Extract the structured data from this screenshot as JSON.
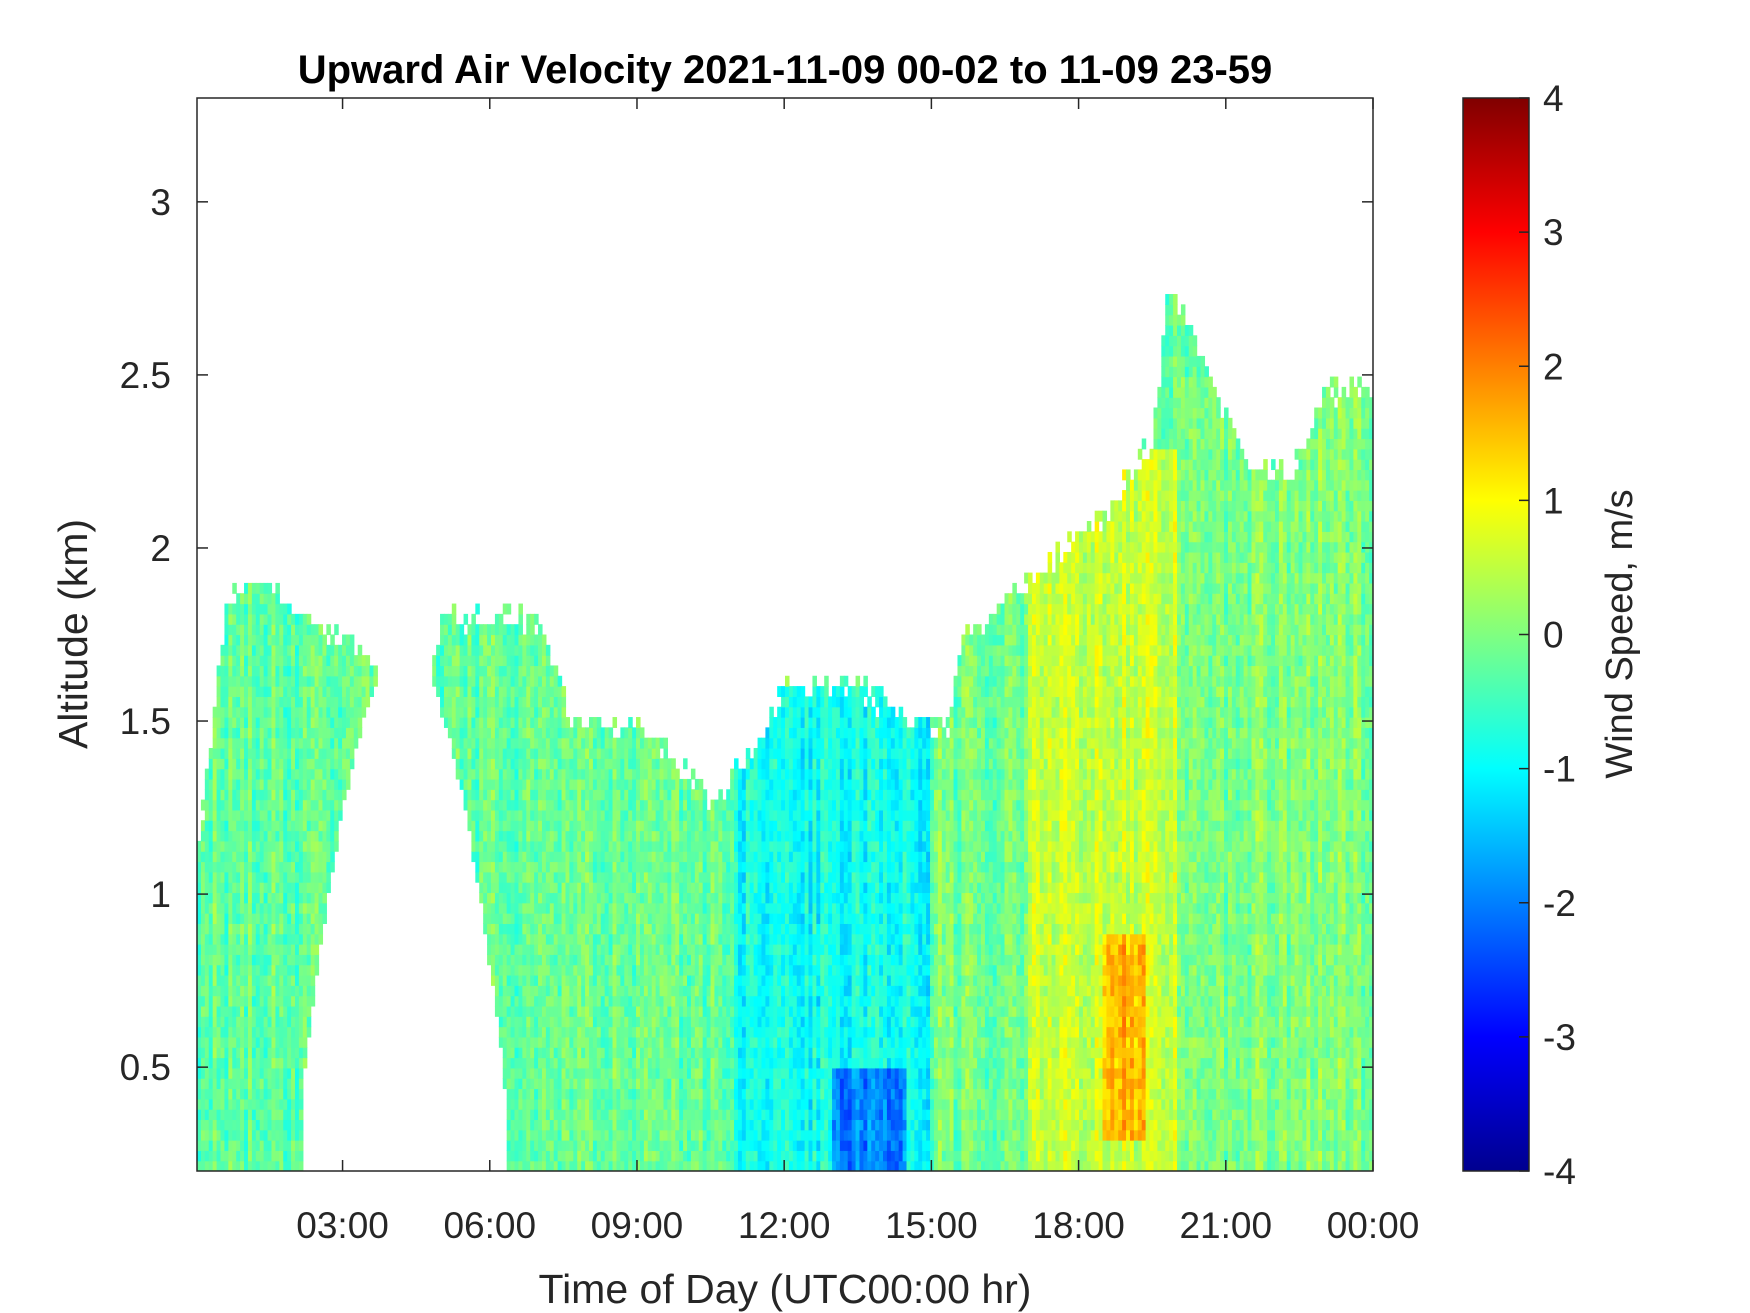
{
  "chart_data": {
    "type": "heatmap",
    "title": "Upward Air Velocity 2021-11-09 00-02 to 11-09 23-59",
    "xlabel": "Time of Day (UTC00:00 hr)",
    "ylabel": "Altitude (km)",
    "xlim": [
      "00:02",
      "24:00"
    ],
    "ylim": [
      0.2,
      3.3
    ],
    "x_ticks": [
      "03:00",
      "06:00",
      "09:00",
      "12:00",
      "15:00",
      "18:00",
      "21:00",
      "00:00"
    ],
    "y_ticks": [
      "0.5",
      "1",
      "1.5",
      "2",
      "2.5",
      "3"
    ],
    "colorbar": {
      "label": "Wind Speed, m/s",
      "colormap": "jet",
      "clim": [
        -4,
        4
      ],
      "ticks": [
        "-4",
        "-3",
        "-2",
        "-1",
        "0",
        "1",
        "2",
        "3",
        "4"
      ]
    },
    "data_top_altitude_km": [
      {
        "time": "00:02",
        "top_km": 1.1
      },
      {
        "time": "00:40",
        "top_km": 1.87
      },
      {
        "time": "01:40",
        "top_km": 1.87
      },
      {
        "time": "02:10",
        "top_km": 1.8
      },
      {
        "time": "03:30",
        "top_km": 1.7
      },
      {
        "time": "04:30",
        "top_km": 1.3
      },
      {
        "time": "05:00",
        "top_km": 1.8
      },
      {
        "time": "07:00",
        "top_km": 1.8
      },
      {
        "time": "07:40",
        "top_km": 1.5
      },
      {
        "time": "09:00",
        "top_km": 1.5
      },
      {
        "time": "10:00",
        "top_km": 1.35
      },
      {
        "time": "10:30",
        "top_km": 1.25
      },
      {
        "time": "11:30",
        "top_km": 1.45
      },
      {
        "time": "12:00",
        "top_km": 1.6
      },
      {
        "time": "13:30",
        "top_km": 1.6
      },
      {
        "time": "14:30",
        "top_km": 1.5
      },
      {
        "time": "15:20",
        "top_km": 1.5
      },
      {
        "time": "15:40",
        "top_km": 1.75
      },
      {
        "time": "17:00",
        "top_km": 1.9
      },
      {
        "time": "18:30",
        "top_km": 2.1
      },
      {
        "time": "19:30",
        "top_km": 2.3
      },
      {
        "time": "19:50",
        "top_km": 2.75
      },
      {
        "time": "20:30",
        "top_km": 2.55
      },
      {
        "time": "21:30",
        "top_km": 2.25
      },
      {
        "time": "22:20",
        "top_km": 2.2
      },
      {
        "time": "23:00",
        "top_km": 2.45
      },
      {
        "time": "24:00",
        "top_km": 2.45
      }
    ],
    "gaps": [
      {
        "from": "02:00",
        "to": "06:30",
        "bottom_km": 0.2,
        "top_km": 1.7,
        "note": ""
      },
      {
        "from": "01:40",
        "to": "02:10",
        "bottom_km": 0.2,
        "top_km": 0.2,
        "note": ""
      }
    ],
    "wind_speed_regions": [
      {
        "from": "00:02",
        "to": "11:00",
        "bottom_km": 0.2,
        "top_km": 1.9,
        "value_m_s": -0.2
      },
      {
        "from": "11:00",
        "to": "15:00",
        "bottom_km": 0.2,
        "top_km": 1.6,
        "value_m_s": -0.9
      },
      {
        "from": "13:00",
        "to": "14:30",
        "bottom_km": 0.2,
        "top_km": 0.5,
        "value_m_s": -2.0
      },
      {
        "from": "15:00",
        "to": "17:00",
        "bottom_km": 0.2,
        "top_km": 1.9,
        "value_m_s": -0.1
      },
      {
        "from": "17:00",
        "to": "20:00",
        "bottom_km": 0.2,
        "top_km": 2.3,
        "value_m_s": 0.6
      },
      {
        "from": "18:30",
        "to": "19:20",
        "bottom_km": 0.3,
        "top_km": 0.9,
        "value_m_s": 1.6
      },
      {
        "from": "20:00",
        "to": "24:00",
        "bottom_km": 0.2,
        "top_km": 2.5,
        "value_m_s": 0.0
      }
    ]
  }
}
